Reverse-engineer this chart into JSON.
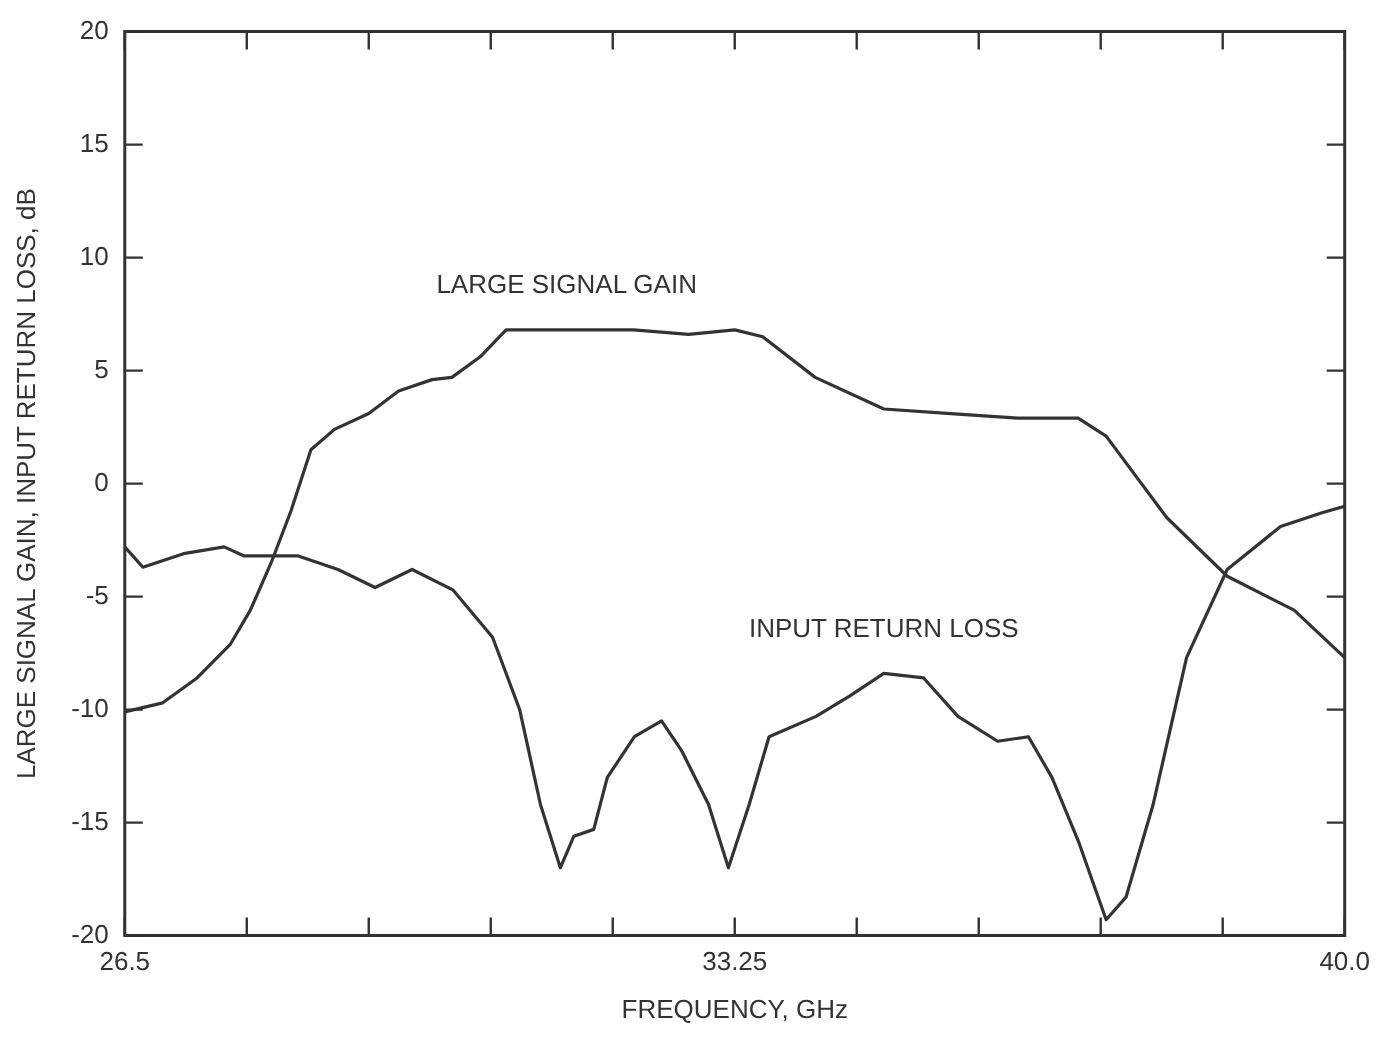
{
  "chart_data": {
    "type": "line",
    "xlabel": "FREQUENCY, GHz",
    "ylabel": "LARGE SIGNAL GAIN, INPUT RETURN LOSS, dB",
    "xlim": [
      26.5,
      40.0
    ],
    "xticks": [
      26.5,
      {
        "value": 27.85,
        "label": null
      },
      {
        "value": 29.2,
        "label": null
      },
      {
        "value": 30.55,
        "label": null
      },
      {
        "value": 31.9,
        "label": null
      },
      33.25,
      {
        "value": 34.6,
        "label": null
      },
      {
        "value": 35.95,
        "label": null
      },
      {
        "value": 37.3,
        "label": null
      },
      {
        "value": 38.65,
        "label": null
      },
      {
        "value": 40.0,
        "label": "40.0"
      }
    ],
    "ylim": [
      -20,
      20
    ],
    "yticks": [
      -20,
      -15,
      -10,
      -5,
      0,
      5,
      10,
      15,
      20
    ],
    "grid": false,
    "legend": false,
    "marker": "none",
    "line_style": "solid",
    "series": [
      {
        "name": "LARGE SIGNAL GAIN",
        "color": "#333333",
        "x": [
          26.5,
          26.92,
          27.3,
          27.67,
          27.89,
          28.12,
          28.34,
          28.56,
          28.82,
          29.2,
          29.53,
          29.9,
          30.12,
          30.43,
          30.72,
          31.39,
          32.13,
          32.74,
          33.25,
          33.56,
          34.14,
          34.9,
          35.64,
          36.38,
          37.05,
          37.36,
          38.03,
          38.7,
          39.44,
          40.0
        ],
        "values": [
          -10.1,
          -9.7,
          -8.6,
          -7.1,
          -5.6,
          -3.5,
          -1.2,
          1.5,
          2.4,
          3.1,
          4.1,
          4.6,
          4.7,
          5.6,
          6.8,
          6.8,
          6.8,
          6.6,
          6.8,
          6.5,
          4.7,
          3.3,
          3.1,
          2.9,
          2.9,
          2.1,
          -1.5,
          -4.1,
          -5.6,
          -7.7
        ]
      },
      {
        "name": "INPUT RETURN LOSS",
        "color": "#333333",
        "x": [
          26.5,
          26.7,
          27.15,
          27.6,
          27.82,
          28.42,
          28.86,
          29.27,
          29.68,
          30.13,
          30.57,
          30.87,
          31.1,
          31.32,
          31.47,
          31.69,
          31.84,
          32.14,
          32.44,
          32.66,
          32.96,
          33.18,
          33.41,
          33.63,
          34.15,
          34.52,
          34.9,
          35.34,
          35.72,
          36.16,
          36.5,
          36.76,
          37.06,
          37.36,
          37.58,
          37.88,
          38.25,
          38.7,
          39.29,
          39.74,
          40.0
        ],
        "values": [
          -2.8,
          -3.7,
          -3.1,
          -2.8,
          -3.2,
          -3.2,
          -3.8,
          -4.6,
          -3.8,
          -4.7,
          -6.8,
          -10,
          -14.2,
          -17,
          -15.6,
          -15.3,
          -13,
          -11.2,
          -10.5,
          -11.8,
          -14.2,
          -17,
          -14.2,
          -11.2,
          -10.3,
          -9.4,
          -8.4,
          -8.6,
          -10.3,
          -11.4,
          -11.2,
          -13,
          -15.9,
          -19.3,
          -18.3,
          -14.2,
          -7.7,
          -3.8,
          -1.9,
          -1.3,
          -1.0
        ]
      }
    ]
  }
}
